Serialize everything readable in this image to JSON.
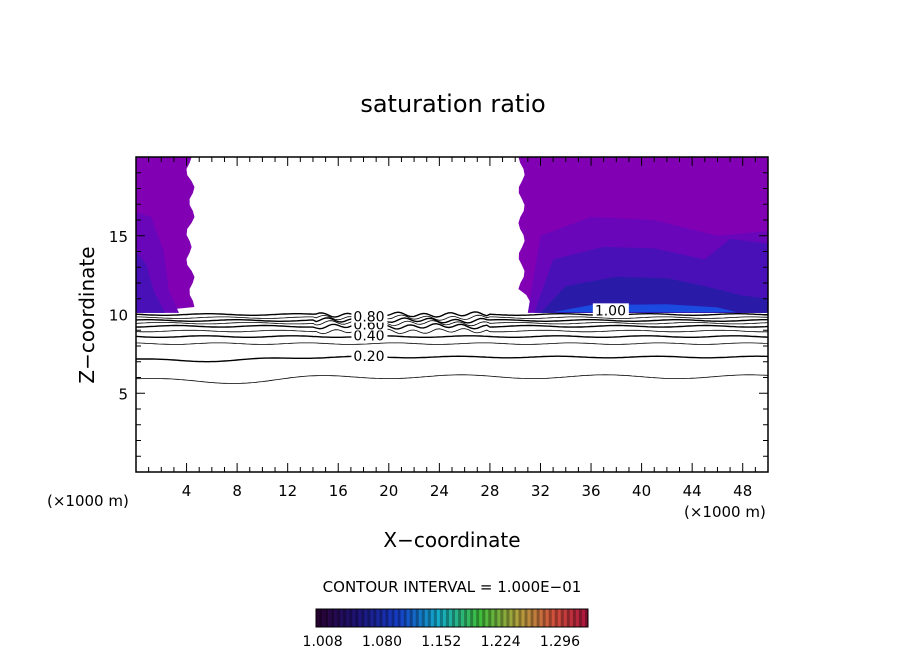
{
  "chart_data": {
    "type": "contour",
    "title": "saturation ratio",
    "xlabel": "X−coordinate",
    "ylabel": "Z−coordinate",
    "x_unit": "(×1000 m)",
    "y_unit": "(×1000 m)",
    "xlim": [
      0,
      50
    ],
    "ylim": [
      0,
      20
    ],
    "x_ticks": [
      4,
      8,
      12,
      16,
      20,
      24,
      28,
      32,
      36,
      40,
      44,
      48
    ],
    "y_ticks": [
      5,
      10,
      15
    ],
    "contour_interval_label": "CONTOUR INTERVAL = 1.000E−01",
    "contour_levels": [
      0.1,
      0.2,
      0.3,
      0.4,
      0.5,
      0.6,
      0.7,
      0.8,
      0.9,
      1.0
    ],
    "contour_labels": [
      {
        "text": "0.20",
        "x": 17.2,
        "y": 7.3
      },
      {
        "text": "0.40",
        "x": 17.2,
        "y": 8.6
      },
      {
        "text": "0.60",
        "x": 17.2,
        "y": 9.3
      },
      {
        "text": "0.80",
        "x": 17.2,
        "y": 9.8
      },
      {
        "text": "1.00",
        "x": 36.3,
        "y": 10.2
      }
    ],
    "colorbar_ticks": [
      "1.008",
      "1.080",
      "1.152",
      "1.224",
      "1.296"
    ],
    "colorbar_range": [
      1.0,
      1.33
    ],
    "supersaturated_regions": [
      {
        "x_range": [
          0,
          4.3
        ],
        "z_range": [
          10.1,
          20
        ]
      },
      {
        "x_range": [
          30.5,
          50
        ],
        "z_range": [
          10.1,
          20
        ]
      }
    ],
    "colors": {
      "fill_main": "#8200b4",
      "fill_mid": "#6a06ba",
      "fill_deep": "#4a10b8",
      "fill_dark": "#2a1aa8",
      "fill_blue": "#1a4ae0"
    }
  }
}
